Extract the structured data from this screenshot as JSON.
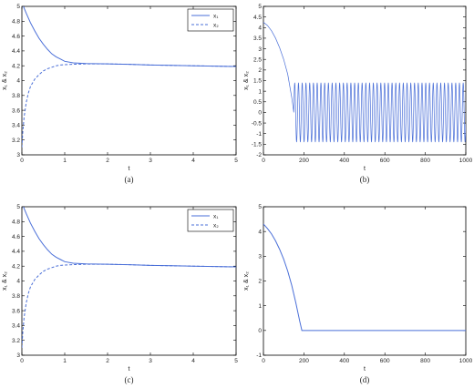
{
  "chart_data": [
    {
      "type": "line",
      "panel": "a",
      "caption": "(a)",
      "xlabel": "t",
      "ylabel": "x₁ & x₂",
      "xlim": [
        0,
        5
      ],
      "ylim": [
        3,
        5
      ],
      "xticks": [
        "0",
        "1",
        "2",
        "3",
        "4",
        "5"
      ],
      "yticks": [
        "3",
        "3.2",
        "3.4",
        "3.6",
        "3.8",
        "4",
        "4.2",
        "4.4",
        "4.6",
        "4.8",
        "5"
      ],
      "legend": {
        "position": "top-right",
        "entries": [
          "x₁",
          "x₂"
        ]
      },
      "series": [
        {
          "name": "x₁",
          "style": "solid",
          "color": "#4a6fd8",
          "x": [
            0,
            0.05,
            0.1,
            0.2,
            0.3,
            0.4,
            0.5,
            0.6,
            0.7,
            0.8,
            0.9,
            1.0,
            1.2,
            1.5,
            2,
            2.5,
            3,
            3.5,
            4,
            4.5,
            5
          ],
          "y": [
            5.05,
            4.98,
            4.91,
            4.78,
            4.67,
            4.57,
            4.49,
            4.42,
            4.36,
            4.32,
            4.29,
            4.26,
            4.24,
            4.23,
            4.225,
            4.22,
            4.21,
            4.205,
            4.2,
            4.195,
            4.19
          ]
        },
        {
          "name": "x₂",
          "style": "dashed",
          "color": "#4a6fd8",
          "x": [
            0,
            0.02,
            0.05,
            0.1,
            0.15,
            0.2,
            0.3,
            0.4,
            0.5,
            0.6,
            0.7,
            0.8,
            0.9,
            1.0,
            1.2,
            1.5,
            2,
            2.5,
            3,
            3.5,
            4,
            4.5,
            5
          ],
          "y": [
            3.1,
            3.3,
            3.5,
            3.7,
            3.83,
            3.92,
            4.02,
            4.08,
            4.13,
            4.16,
            4.18,
            4.2,
            4.21,
            4.215,
            4.22,
            4.225,
            4.225,
            4.22,
            4.21,
            4.205,
            4.2,
            4.195,
            4.19
          ]
        }
      ]
    },
    {
      "type": "line",
      "panel": "b",
      "caption": "(b)",
      "xlabel": "t",
      "ylabel": "x₁ & x₂",
      "xlim": [
        0,
        1000
      ],
      "ylim": [
        -2,
        5
      ],
      "xticks": [
        "0",
        "200",
        "400",
        "600",
        "800",
        "1000"
      ],
      "yticks": [
        "-2",
        "-1.5",
        "-1",
        "-0.5",
        "0",
        "0.5",
        "1",
        "1.5",
        "2",
        "2.5",
        "3",
        "3.5",
        "4",
        "4.5",
        "5"
      ],
      "series": [
        {
          "name": "",
          "style": "solid",
          "color": "#4a6fd8",
          "decay": {
            "x": [
              0,
              20,
              40,
              60,
              80,
              100,
              120,
              140,
              150
            ],
            "y": [
              4.25,
              4.1,
              3.85,
              3.5,
              3.05,
              2.5,
              1.8,
              0.7,
              0
            ]
          },
          "oscillation": {
            "start": 150,
            "end": 1000,
            "period": 18.5,
            "amplitude": 1.4
          }
        }
      ]
    },
    {
      "type": "line",
      "panel": "c",
      "caption": "(c)",
      "xlabel": "t",
      "ylabel": "x₁ & x₂",
      "xlim": [
        0,
        5
      ],
      "ylim": [
        3,
        5
      ],
      "xticks": [
        "0",
        "1",
        "2",
        "3",
        "4",
        "5"
      ],
      "yticks": [
        "3",
        "3.2",
        "3.4",
        "3.6",
        "3.8",
        "4",
        "4.2",
        "4.4",
        "4.6",
        "4.8",
        "5"
      ],
      "legend": {
        "position": "top-right",
        "entries": [
          "x₁",
          "x₂"
        ]
      },
      "series": [
        {
          "name": "x₁",
          "style": "solid",
          "color": "#4a6fd8",
          "x": [
            0,
            0.05,
            0.1,
            0.2,
            0.3,
            0.4,
            0.5,
            0.6,
            0.7,
            0.8,
            0.9,
            1.0,
            1.2,
            1.5,
            2,
            2.5,
            3,
            3.5,
            4,
            4.5,
            5
          ],
          "y": [
            5.05,
            4.98,
            4.91,
            4.78,
            4.67,
            4.57,
            4.49,
            4.42,
            4.36,
            4.32,
            4.29,
            4.26,
            4.24,
            4.23,
            4.225,
            4.22,
            4.21,
            4.205,
            4.2,
            4.195,
            4.19
          ]
        },
        {
          "name": "x₂",
          "style": "dashed",
          "color": "#4a6fd8",
          "x": [
            0,
            0.02,
            0.05,
            0.1,
            0.15,
            0.2,
            0.3,
            0.4,
            0.5,
            0.6,
            0.7,
            0.8,
            0.9,
            1.0,
            1.2,
            1.5,
            2,
            2.5,
            3,
            3.5,
            4,
            4.5,
            5
          ],
          "y": [
            3.1,
            3.3,
            3.5,
            3.7,
            3.83,
            3.92,
            4.02,
            4.08,
            4.13,
            4.16,
            4.18,
            4.2,
            4.21,
            4.215,
            4.22,
            4.225,
            4.225,
            4.22,
            4.21,
            4.205,
            4.2,
            4.195,
            4.19
          ]
        }
      ]
    },
    {
      "type": "line",
      "panel": "d",
      "caption": "(d)",
      "xlabel": "t",
      "ylabel": "x₁ & x₂",
      "xlim": [
        0,
        1000
      ],
      "ylim": [
        -1,
        5
      ],
      "xticks": [
        "0",
        "200",
        "400",
        "600",
        "800",
        "1000"
      ],
      "yticks": [
        "-1",
        "0",
        "1",
        "2",
        "3",
        "4",
        "5"
      ],
      "series": [
        {
          "name": "",
          "style": "solid",
          "color": "#4a6fd8",
          "x": [
            0,
            20,
            40,
            60,
            80,
            100,
            120,
            140,
            160,
            180,
            190,
            1000
          ],
          "y": [
            4.3,
            4.12,
            3.9,
            3.62,
            3.28,
            2.88,
            2.4,
            1.82,
            1.12,
            0.35,
            0,
            0
          ]
        }
      ]
    }
  ]
}
